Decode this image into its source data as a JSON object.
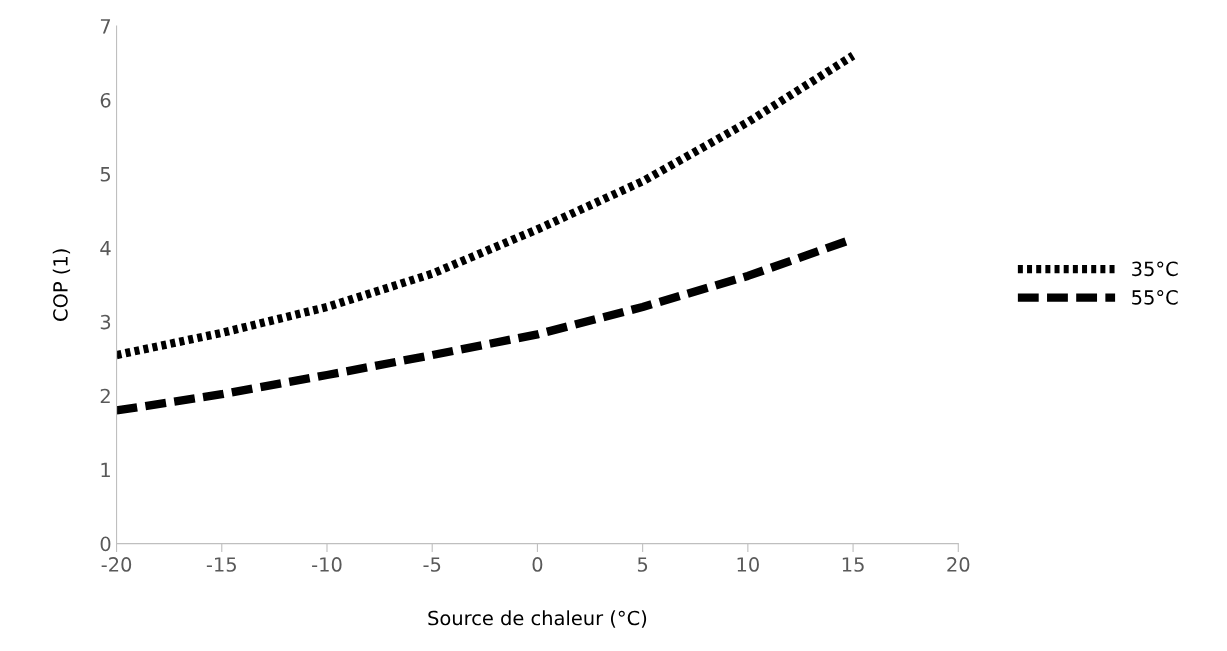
{
  "chart_data": {
    "type": "line",
    "xlabel": "Source de chaleur (°C)",
    "ylabel": "COP (1)",
    "x": [
      -20,
      -15,
      -10,
      -5,
      0,
      5,
      10,
      15
    ],
    "xlim": [
      -20,
      20
    ],
    "xticks": [
      -20,
      -15,
      -10,
      -5,
      0,
      5,
      10,
      15,
      20
    ],
    "ylim": [
      0,
      7
    ],
    "yticks": [
      0,
      1,
      2,
      3,
      4,
      5,
      6,
      7
    ],
    "grid": false,
    "legend": "right",
    "marker": "none",
    "series": [
      {
        "name": "35°C",
        "color": "#000000",
        "line_style": "dotted",
        "values": [
          2.55,
          2.85,
          3.2,
          3.65,
          4.25,
          4.9,
          5.7,
          6.6
        ]
      },
      {
        "name": "55°C",
        "color": "#000000",
        "line_style": "dashed",
        "values": [
          1.8,
          2.02,
          2.28,
          2.55,
          2.83,
          3.2,
          3.62,
          4.12
        ]
      }
    ]
  }
}
